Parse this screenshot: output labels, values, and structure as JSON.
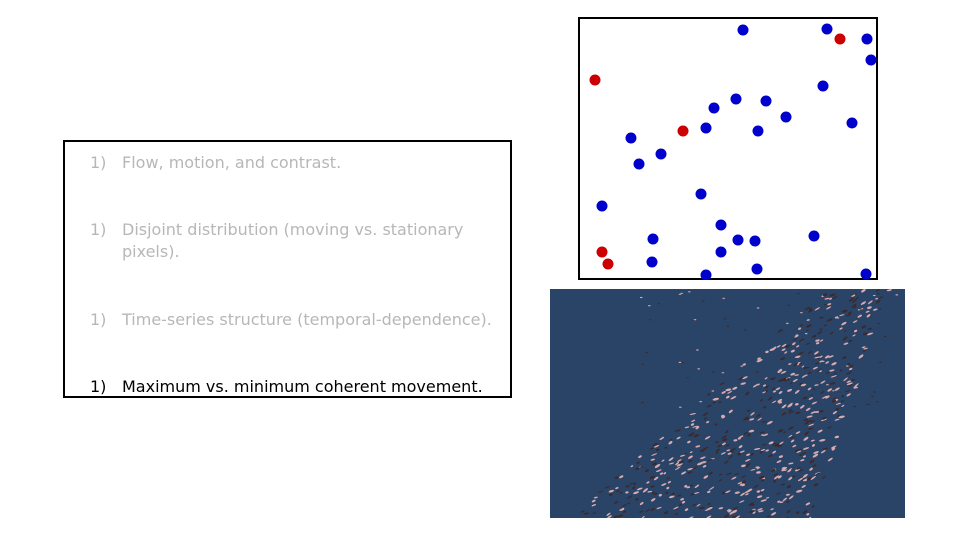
{
  "list": {
    "items": [
      {
        "number": "1)",
        "text": "Flow, motion, and contrast.",
        "active": false
      },
      {
        "number": "1)",
        "text": "Disjoint distribution (moving vs. stationary pixels).",
        "active": false
      },
      {
        "number": "1)",
        "text": "Time-series structure (temporal-dependence).",
        "active": false
      },
      {
        "number": "1)",
        "text": "Maximum vs. minimum coherent movement.",
        "active": true
      }
    ]
  },
  "dot_plot": {
    "colors": {
      "blue": "#0000cc",
      "red": "#cc0000"
    },
    "blue_count": 30,
    "red_count": 5
  },
  "photo": {
    "subject": "aerial view of a large flock of birds over blue water",
    "colors": {
      "water": "#2a4467",
      "flock_light": "#d9aab0",
      "flock_dark": "#3a2a2e"
    }
  }
}
